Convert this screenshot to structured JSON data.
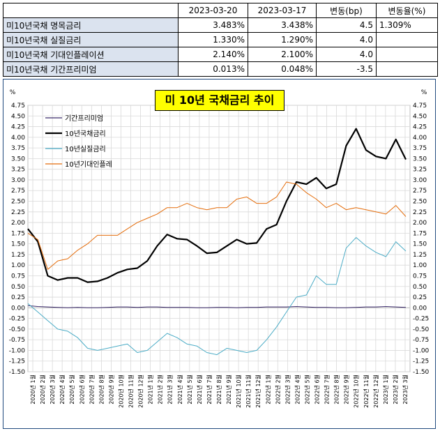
{
  "table": {
    "headers": [
      "",
      "2023-03-20",
      "2023-03-17",
      "변동(bp)",
      "변동율(%)"
    ],
    "rows": [
      [
        "미10년국채 명목금리",
        "3.483%",
        "3.438%",
        "4.5",
        "1.309%"
      ],
      [
        "미10년국채 실질금리",
        "1.330%",
        "1.290%",
        "4.0",
        ""
      ],
      [
        "미10년국채 기대인플레이션",
        "2.140%",
        "2.100%",
        "4.0",
        ""
      ],
      [
        "미10년국채 기간프리미엄",
        "0.013%",
        "0.048%",
        "-3.5",
        ""
      ]
    ]
  },
  "chart_data": {
    "type": "line",
    "title": "미 10년  국채금리  추이",
    "y_unit_left": "%",
    "y_unit_right": "%",
    "ylim": [
      -1.5,
      4.75
    ],
    "y_ticks": [
      "4.75",
      "4.50",
      "4.25",
      "4.00",
      "3.75",
      "3.50",
      "3.25",
      "3.00",
      "2.75",
      "2.50",
      "2.25",
      "2.00",
      "1.75",
      "1.50",
      "1.25",
      "1.00",
      "0.75",
      "0.50",
      "0.25",
      "0.00",
      "-0.25",
      "-0.50",
      "-0.75",
      "-1.00",
      "-1.25",
      "-1.50"
    ],
    "x_ticks": [
      "2020년 1월",
      "2020년 2월",
      "2020년 3월",
      "2020년 4월",
      "2020년 5월",
      "2020년 6월",
      "2020년 7월",
      "2020년 8월",
      "2020년 9월",
      "2020년 10월",
      "2020년 11월",
      "2020년 12월",
      "2021년 1월",
      "2021년 2월",
      "2021년 3월",
      "2021년 4월",
      "2021년 5월",
      "2021년 6월",
      "2021년 7월",
      "2021년 8월",
      "2021년 9월",
      "2021년 10월",
      "2021년 11월",
      "2021년 12월",
      "2022년 1월",
      "2022년 2월",
      "2022년 3월",
      "2022년 4월",
      "2022년 5월",
      "2022년 6월",
      "2022년 7월",
      "2022년 8월",
      "2022년 9월",
      "2022년 10월",
      "2022년 11월",
      "2022년 12월",
      "2023년 1월",
      "2023년 2월",
      "2023년 3월"
    ],
    "grid": true,
    "legend_position": "top-left",
    "series": [
      {
        "name": "기간프리미엄",
        "color": "#3b2a6b",
        "values": [
          0.05,
          0.03,
          0.02,
          0.01,
          0.0,
          0.01,
          0.0,
          0.0,
          0.01,
          0.02,
          0.02,
          0.01,
          0.02,
          0.02,
          0.01,
          0.01,
          0.01,
          0.0,
          0.0,
          0.01,
          0.01,
          0.0,
          0.01,
          0.01,
          0.02,
          0.02,
          0.02,
          0.03,
          0.02,
          0.01,
          0.01,
          0.0,
          0.0,
          0.01,
          0.02,
          0.02,
          0.03,
          0.02,
          0.01
        ]
      },
      {
        "name": "10년국채금리",
        "color": "#000000",
        "values": [
          1.85,
          1.55,
          0.75,
          0.65,
          0.7,
          0.7,
          0.6,
          0.62,
          0.7,
          0.82,
          0.9,
          0.93,
          1.1,
          1.45,
          1.72,
          1.62,
          1.6,
          1.45,
          1.28,
          1.3,
          1.45,
          1.6,
          1.5,
          1.52,
          1.85,
          1.95,
          2.5,
          2.95,
          2.9,
          3.05,
          2.8,
          2.9,
          3.8,
          4.2,
          3.7,
          3.55,
          3.5,
          3.95,
          3.48
        ]
      },
      {
        "name": "10년실질금리",
        "color": "#4bacc6",
        "values": [
          0.1,
          -0.1,
          -0.3,
          -0.5,
          -0.55,
          -0.7,
          -0.95,
          -1.0,
          -0.95,
          -0.9,
          -0.85,
          -1.05,
          -1.0,
          -0.8,
          -0.6,
          -0.7,
          -0.85,
          -0.9,
          -1.05,
          -1.1,
          -0.95,
          -1.0,
          -1.05,
          -1.0,
          -0.75,
          -0.45,
          -0.1,
          0.25,
          0.3,
          0.75,
          0.55,
          0.55,
          1.4,
          1.65,
          1.45,
          1.3,
          1.2,
          1.55,
          1.33
        ]
      },
      {
        "name": "10년기대인플레",
        "color": "#e46c0a",
        "values": [
          1.75,
          1.6,
          0.9,
          1.1,
          1.15,
          1.35,
          1.5,
          1.7,
          1.7,
          1.7,
          1.85,
          2.0,
          2.1,
          2.2,
          2.35,
          2.35,
          2.45,
          2.35,
          2.3,
          2.35,
          2.35,
          2.55,
          2.6,
          2.45,
          2.45,
          2.6,
          2.95,
          2.9,
          2.7,
          2.55,
          2.35,
          2.45,
          2.3,
          2.35,
          2.3,
          2.25,
          2.2,
          2.4,
          2.14
        ]
      }
    ]
  }
}
